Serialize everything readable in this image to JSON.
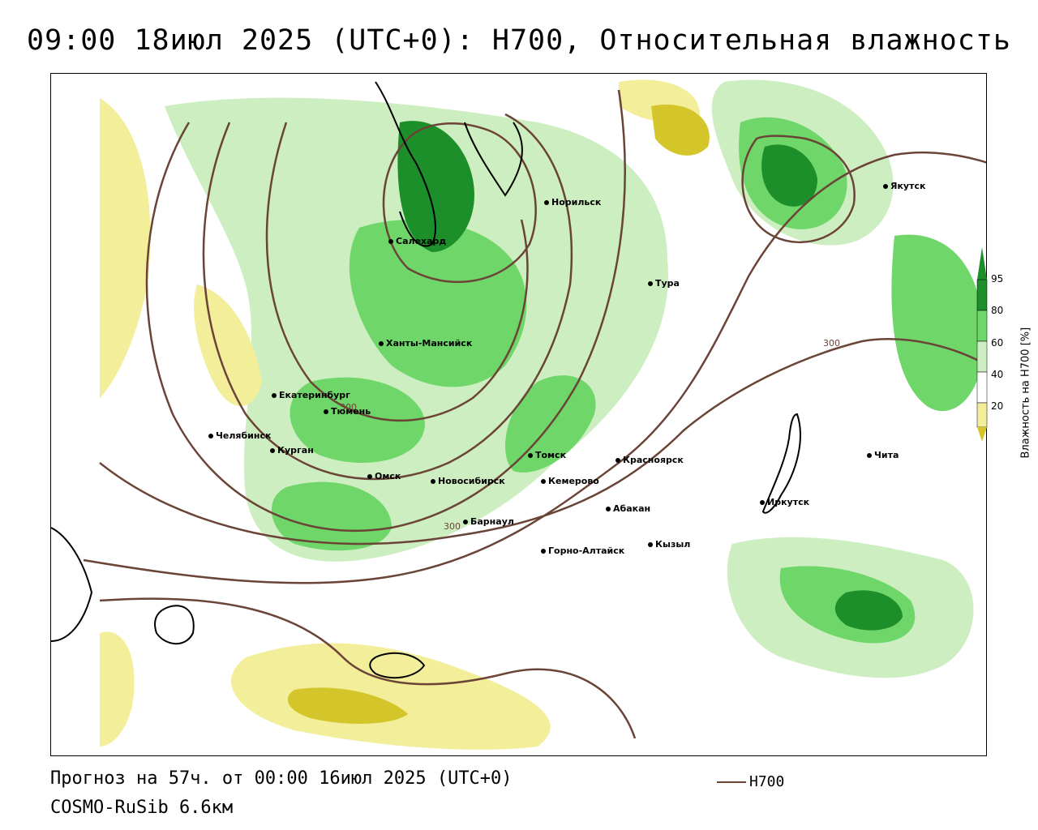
{
  "title": "09:00 18июл 2025 (UTC+0): H700, Относительная влажность",
  "footer": {
    "forecast": "Прогноз на 57ч. от 00:00 16июл 2025 (UTC+0)",
    "model": "COSMO-RuSib 6.6км"
  },
  "legend": {
    "line_label": "H700",
    "line_color": "#6b4438"
  },
  "colorbar": {
    "title": "Влажность на H700 [%]",
    "ticks": [
      "95",
      "80",
      "60",
      "40",
      "20"
    ],
    "colors": {
      "very_dry": "#d4c62a",
      "dry": "#f2ee9a",
      "neutral": "#ffffff",
      "moist": "#cdeec0",
      "humid": "#6fd66a",
      "very_humid": "#1c8f2a"
    }
  },
  "isolines": [
    "300",
    "300",
    "300"
  ],
  "cities": [
    {
      "name": "Норильск"
    },
    {
      "name": "Якутск"
    },
    {
      "name": "Салехард"
    },
    {
      "name": "Тура"
    },
    {
      "name": "Ханты-Мансийск"
    },
    {
      "name": "Екатеринбург"
    },
    {
      "name": "Тюмень"
    },
    {
      "name": "Челябинск"
    },
    {
      "name": "Курган"
    },
    {
      "name": "Омск"
    },
    {
      "name": "Новосибирск"
    },
    {
      "name": "Томск"
    },
    {
      "name": "Кемерово"
    },
    {
      "name": "Красноярск"
    },
    {
      "name": "Барнаул"
    },
    {
      "name": "Абакан"
    },
    {
      "name": "Кызыл"
    },
    {
      "name": "Горно-Алтайск"
    },
    {
      "name": "Иркутск"
    },
    {
      "name": "Чита"
    }
  ]
}
